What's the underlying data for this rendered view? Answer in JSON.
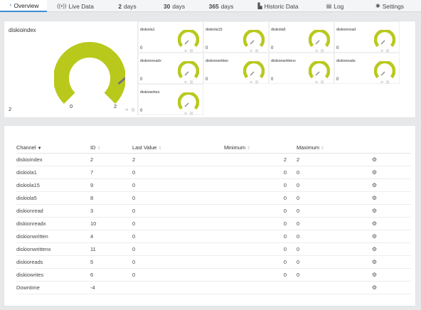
{
  "tabs": [
    {
      "icon": "overview-icon",
      "label": "Overview",
      "active": true
    },
    {
      "icon": "live-data-icon",
      "label": "Live Data"
    },
    {
      "number": "2",
      "label": "days"
    },
    {
      "number": "30",
      "label": "days"
    },
    {
      "number": "365",
      "label": "days"
    },
    {
      "icon": "historic-data-icon",
      "label": "Historic Data"
    },
    {
      "icon": "log-icon",
      "label": "Log"
    },
    {
      "icon": "settings-icon",
      "label": "Settings"
    }
  ],
  "gauges": {
    "main": {
      "title": "diskioindex",
      "value": "2",
      "scale_min": "0",
      "scale_max": "2",
      "needle_fraction": 0.87
    },
    "mini": [
      {
        "title": "diskiola1",
        "value": "0"
      },
      {
        "title": "diskiola15",
        "value": "0"
      },
      {
        "title": "diskiola5",
        "value": "0"
      },
      {
        "title": "diskionread",
        "value": "0"
      },
      {
        "title": "diskionreadx",
        "value": "0"
      },
      {
        "title": "diskionwritten",
        "value": "0"
      },
      {
        "title": "diskionwrittenx",
        "value": "0"
      },
      {
        "title": "diskioreads",
        "value": "0"
      },
      {
        "title": "diskiowrites",
        "value": "0"
      }
    ],
    "gauge_color": "#b8c91c"
  },
  "table": {
    "headers": {
      "channel": "Channel",
      "id": "ID",
      "last_value": "Last Value",
      "minimum": "Minimum",
      "maximum": "Maximum"
    },
    "rows": [
      {
        "channel": "diskioindex",
        "id": "2",
        "last": "2",
        "min": "2",
        "max": "2"
      },
      {
        "channel": "diskiola1",
        "id": "7",
        "last": "0",
        "min": "0",
        "max": "0"
      },
      {
        "channel": "diskiola15",
        "id": "9",
        "last": "0",
        "min": "0",
        "max": "0"
      },
      {
        "channel": "diskiola5",
        "id": "8",
        "last": "0",
        "min": "0",
        "max": "0"
      },
      {
        "channel": "diskionread",
        "id": "3",
        "last": "0",
        "min": "0",
        "max": "0"
      },
      {
        "channel": "diskionreadx",
        "id": "10",
        "last": "0",
        "min": "0",
        "max": "0"
      },
      {
        "channel": "diskionwritten",
        "id": "4",
        "last": "0",
        "min": "0",
        "max": "0"
      },
      {
        "channel": "diskionwrittenx",
        "id": "11",
        "last": "0",
        "min": "0",
        "max": "0"
      },
      {
        "channel": "diskioreads",
        "id": "5",
        "last": "0",
        "min": "0",
        "max": "0"
      },
      {
        "channel": "diskiowrites",
        "id": "6",
        "last": "0",
        "min": "0",
        "max": "0"
      },
      {
        "channel": "Downtime",
        "id": "-4",
        "last": "",
        "min": "",
        "max": ""
      }
    ]
  }
}
